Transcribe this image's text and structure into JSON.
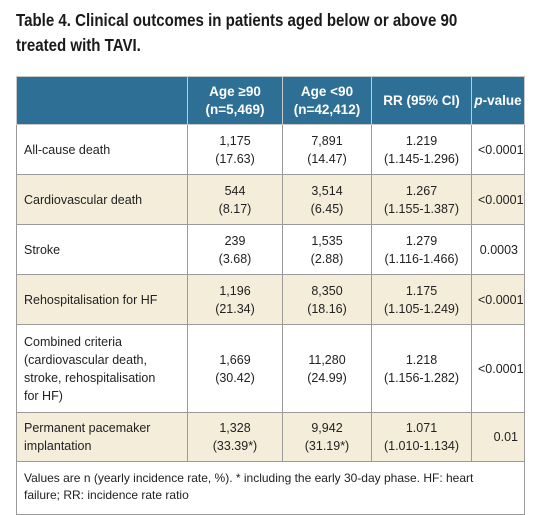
{
  "caption": {
    "line1": "Table 4. Clinical outcomes in patients aged below or above 90",
    "line2": "treated with TAVI."
  },
  "headers": {
    "outcome": "",
    "age_ge90_l1": "Age ≥90",
    "age_ge90_l2": "(n=5,469)",
    "age_lt90_l1": "Age <90",
    "age_lt90_l2": "(n=42,412)",
    "rr": "RR (95% CI)",
    "pvalue_prefix": "p",
    "pvalue_suffix": "-value"
  },
  "rows": [
    {
      "label": [
        "All-cause death"
      ],
      "ge90": [
        "1,175",
        "(17.63)"
      ],
      "lt90": [
        "7,891",
        "(14.47)"
      ],
      "rr": [
        "1.219",
        "(1.145-1.296)"
      ],
      "p": "<0.0001"
    },
    {
      "label": [
        "Cardiovascular death"
      ],
      "ge90": [
        "544",
        "(8.17)"
      ],
      "lt90": [
        "3,514",
        "(6.45)"
      ],
      "rr": [
        "1.267",
        "(1.155-1.387)"
      ],
      "p": "<0.0001"
    },
    {
      "label": [
        "Stroke"
      ],
      "ge90": [
        "239",
        "(3.68)"
      ],
      "lt90": [
        "1,535",
        "(2.88)"
      ],
      "rr": [
        "1.279",
        "(1.116-1.466)"
      ],
      "p": "0.0003"
    },
    {
      "label": [
        "Rehospitalisation for HF"
      ],
      "ge90": [
        "1,196",
        "(21.34)"
      ],
      "lt90": [
        "8,350",
        "(18.16)"
      ],
      "rr": [
        "1.175",
        "(1.105-1.249)"
      ],
      "p": "<0.0001"
    },
    {
      "label": [
        "Combined criteria",
        "(cardiovascular death,",
        "stroke, rehospitalisation",
        "for HF)"
      ],
      "ge90": [
        "1,669",
        "(30.42)"
      ],
      "lt90": [
        "11,280",
        "(24.99)"
      ],
      "rr": [
        "1.218",
        "(1.156-1.282)"
      ],
      "p": "<0.0001"
    },
    {
      "label": [
        "Permanent pacemaker",
        "implantation"
      ],
      "ge90": [
        "1,328",
        "(33.39*)"
      ],
      "lt90": [
        "9,942",
        "(31.19*)"
      ],
      "rr": [
        "1.071",
        "(1.010-1.134)"
      ],
      "p": "0.01"
    }
  ],
  "footnote": {
    "line1": "Values are n (yearly incidence rate, %). * including the early 30-day phase.  HF: heart",
    "line2": "failure; RR: incidence rate ratio"
  },
  "colors": {
    "header_bg": "#2e6f95",
    "alt_row_bg": "#f3edda"
  }
}
